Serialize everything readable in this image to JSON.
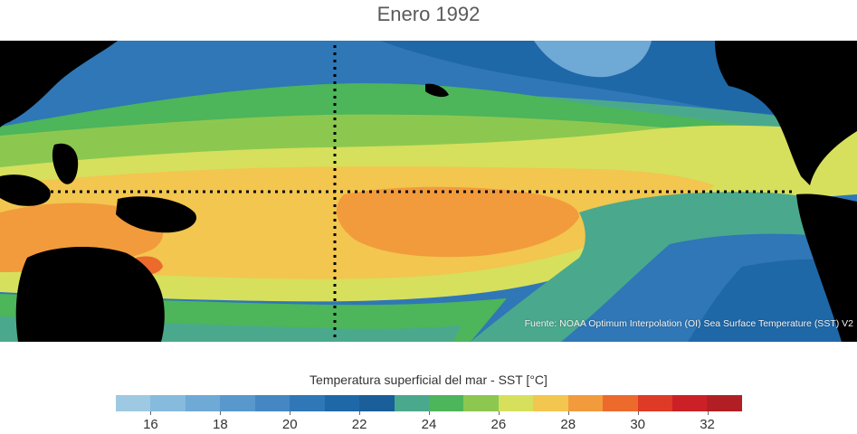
{
  "title": "Enero 1992",
  "source_note": "Fuente: NOAA Optimum Interpolation (OI) Sea Surface Temperature (SST) V2",
  "legend": {
    "title": "Temperatura superficial del mar - SST  [°C]",
    "unit": "°C",
    "range": [
      15,
      33
    ],
    "tick_labels": [
      "16",
      "18",
      "20",
      "22",
      "24",
      "26",
      "28",
      "30",
      "32"
    ],
    "colors": [
      "#9ec9e2",
      "#86bbdd",
      "#6fa9d6",
      "#5998cc",
      "#4487c2",
      "#2f77b6",
      "#1f68a8",
      "#1a5f9a",
      "#4aa98d",
      "#4db55a",
      "#8cc850",
      "#d6e05c",
      "#f2c64f",
      "#f29b3c",
      "#ec6a2c",
      "#de3a26",
      "#cc2027",
      "#b11f24"
    ]
  },
  "map": {
    "region": "Pacífico tropical",
    "land_color": "#000000",
    "reference_lines": [
      "equator",
      "meridian"
    ]
  }
}
